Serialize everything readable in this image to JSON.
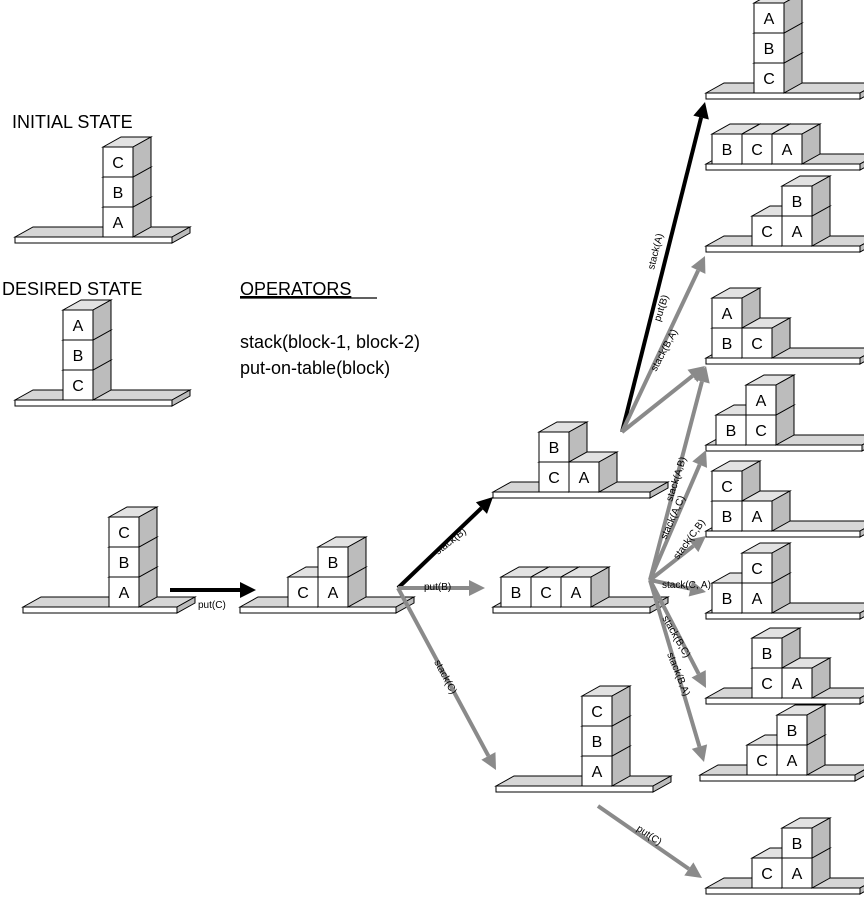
{
  "titles": {
    "initial": "INITIAL STATE",
    "desired": "DESIRED STATE",
    "operators_heading": "OPERATORS",
    "operator_1": "stack(block-1, block-2)",
    "operator_2": "put-on-table(block)"
  },
  "states": {
    "initial_state": [
      [
        "A",
        "B",
        "C"
      ]
    ],
    "desired_state": [
      [
        "C",
        "B",
        "A"
      ]
    ],
    "root": [
      [
        "A",
        "B",
        "C"
      ]
    ],
    "level1": [
      [
        "C"
      ],
      [
        "A",
        "B"
      ]
    ],
    "level2_top": [
      [
        "C",
        "B"
      ],
      [
        "A"
      ]
    ],
    "level2_mid": [
      [
        "B"
      ],
      [
        "C"
      ],
      [
        "A"
      ]
    ],
    "level2_bot": [
      [
        "A",
        "B",
        "C"
      ]
    ],
    "leaf_1": [
      [
        "C",
        "B",
        "A"
      ]
    ],
    "leaf_2": [
      [
        "B"
      ],
      [
        "C"
      ],
      [
        "A"
      ]
    ],
    "leaf_3": [
      [
        "C"
      ],
      [
        "A",
        "B"
      ]
    ],
    "leaf_4": [
      [
        "B",
        "A"
      ],
      [
        "C"
      ]
    ],
    "leaf_5": [
      [
        "B"
      ],
      [
        "C",
        "A"
      ]
    ],
    "leaf_6": [
      [
        "B",
        "C"
      ],
      [
        "A"
      ]
    ],
    "leaf_7": [
      [
        "B"
      ],
      [
        "A",
        "C"
      ]
    ],
    "leaf_8": [
      [
        "C",
        "B"
      ],
      [
        "A"
      ]
    ],
    "leaf_9": [
      [
        "C"
      ],
      [
        "A",
        "B"
      ]
    ],
    "leaf_10": [
      [
        "C"
      ],
      [
        "A",
        "B"
      ]
    ]
  },
  "edges": {
    "e_putC_root": "put(C)",
    "e_stackB_1": "stack(B)",
    "e_putB_1": "put(B)",
    "e_stackC_1": "stack(C)",
    "e_stackA_top": "stack(A)",
    "e_putB_top": "put(B)",
    "e_stackBA_top": "stack(B,A)",
    "e_stackAB": "stack(A,B)",
    "e_stackAC": "stack(A,C)",
    "e_stackCB": "stack(C,B)",
    "e_stackCA": "stack(C, A)",
    "e_stackBC": "stack(B,C)",
    "e_stackBA_mid": "stack(B,A)",
    "e_putC_bot": "put(C)"
  },
  "colors": {
    "block_face": "#ffffff",
    "block_top": "#e2e2e2",
    "block_side": "#bcbcbc",
    "table_face": "#ffffff",
    "table_top": "#d6d6d6",
    "outline": "#000000",
    "arrow_black": "#000000",
    "arrow_gray": "#8a8a8a"
  }
}
